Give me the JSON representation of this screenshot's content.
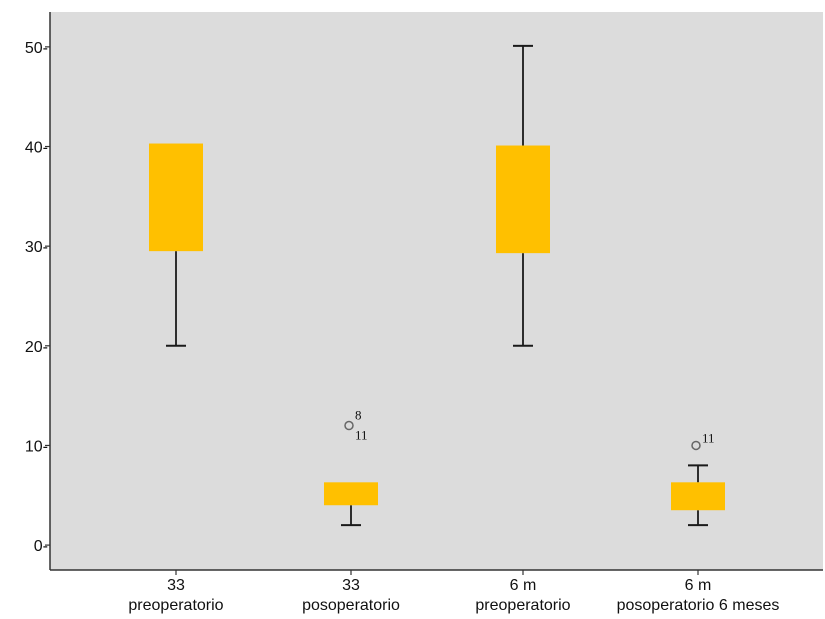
{
  "chart_data": {
    "type": "box",
    "title": "",
    "xlabel": "",
    "ylabel": "",
    "ylim": [
      -2.5,
      53.5
    ],
    "yticks": [
      {
        "value": 0,
        "label": "0-"
      },
      {
        "value": 10,
        "label": "10-"
      },
      {
        "value": 20,
        "label": "20-"
      },
      {
        "value": 30,
        "label": "30-"
      },
      {
        "value": 40,
        "label": "40-"
      },
      {
        "value": 50,
        "label": "50-"
      }
    ],
    "grid": false,
    "legend": "none",
    "colors": {
      "plot_background": "#dcdcdc",
      "box_fill": "#ffc000",
      "whisker": "#1a1a1a",
      "axis": "#333333",
      "outlier": "#666666"
    },
    "categories": [
      {
        "line1": "33",
        "line2": "preoperatorio"
      },
      {
        "line1": "33",
        "line2": "posoperatorio"
      },
      {
        "line1": "6 m",
        "line2": "preoperatorio"
      },
      {
        "line1": "6 m",
        "line2": "posoperatorio 6 meses"
      }
    ],
    "boxes": [
      {
        "min": 20,
        "q1": 29.5,
        "median": 29.5,
        "q3": 40.3,
        "max": 40.3,
        "outliers": []
      },
      {
        "min": 2,
        "q1": 4,
        "median": 4,
        "q3": 6.3,
        "max": 6.3,
        "outliers": [
          {
            "value": 12,
            "labels": [
              "8",
              "11"
            ]
          }
        ]
      },
      {
        "min": 20,
        "q1": 29.3,
        "median": 29.3,
        "q3": 40.1,
        "max": 50.1,
        "outliers": []
      },
      {
        "min": 2,
        "q1": 3.5,
        "median": 3.5,
        "q3": 6.3,
        "max": 8,
        "outliers": [
          {
            "value": 10,
            "labels": [
              "11"
            ]
          }
        ]
      }
    ]
  }
}
